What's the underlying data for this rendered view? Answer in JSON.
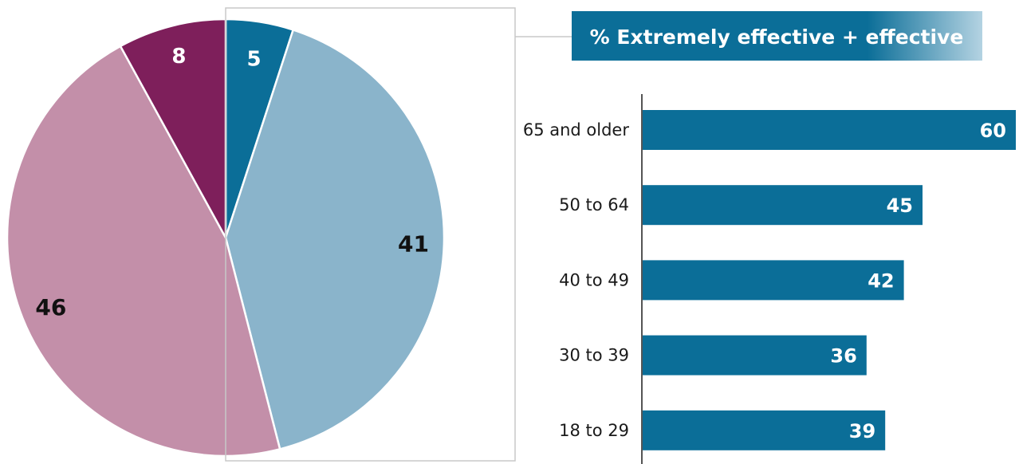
{
  "chart_data": [
    {
      "type": "pie",
      "slices": [
        {
          "label": "5",
          "value": 5,
          "color": "#0b6e98"
        },
        {
          "label": "41",
          "value": 41,
          "color": "#8ab4cb"
        },
        {
          "label": "46",
          "value": 46,
          "color": "#c38fa9"
        },
        {
          "label": "8",
          "value": 8,
          "color": "#7e1f5b"
        }
      ],
      "label_colors": [
        "#ffffff",
        "#111111",
        "#111111",
        "#ffffff"
      ],
      "highlight": "callout box around the 5 and 41 slices"
    },
    {
      "type": "bar",
      "orientation": "horizontal",
      "title": "% Extremely effective + effective",
      "categories": [
        "65 and older",
        "50 to 64",
        "40 to 49",
        "30 to 39",
        "18 to 29"
      ],
      "values": [
        60,
        45,
        42,
        36,
        39
      ],
      "color": "#0b6e98",
      "xlim": [
        0,
        60
      ]
    }
  ]
}
